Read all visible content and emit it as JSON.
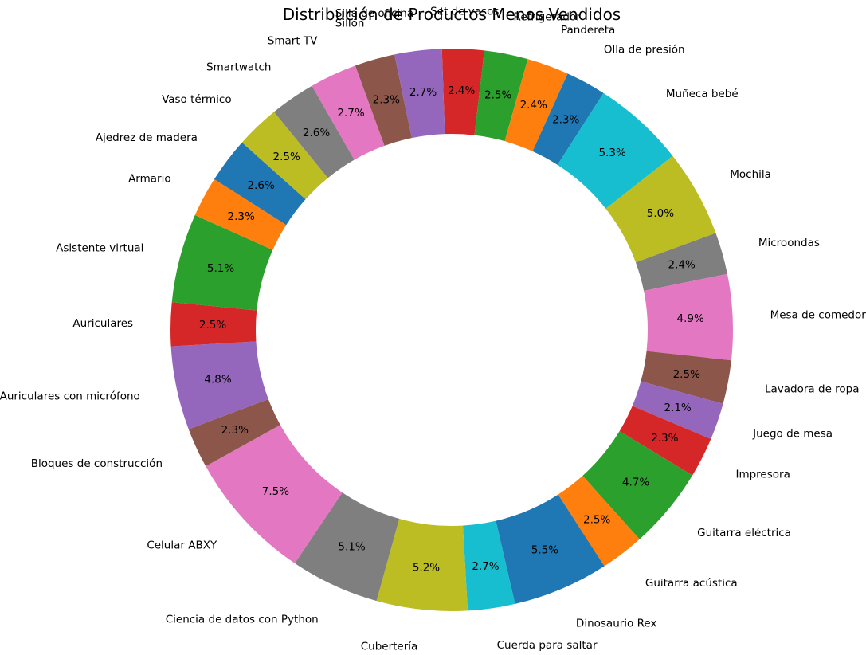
{
  "chart_data": {
    "type": "pie",
    "donut": true,
    "title": "Distribución de Productos Menos Vendidos",
    "start_angle_deg": 92,
    "direction": "clockwise",
    "slices": [
      {
        "label": "Set de vasos",
        "value": 2.4,
        "pct": "2.4%",
        "color": "#d62728"
      },
      {
        "label": "Refrigerador",
        "value": 2.5,
        "pct": "2.5%",
        "color": "#2ca02c"
      },
      {
        "label": "Pandereta",
        "value": 2.4,
        "pct": "2.4%",
        "color": "#ff7f0e"
      },
      {
        "label": "Olla de presión",
        "value": 2.3,
        "pct": "2.3%",
        "color": "#1f77b4"
      },
      {
        "label": "Muñeca bebé",
        "value": 5.3,
        "pct": "5.3%",
        "color": "#17becf"
      },
      {
        "label": "Mochila",
        "value": 5.0,
        "pct": "5.0%",
        "color": "#bcbd22"
      },
      {
        "label": "Microondas",
        "value": 2.4,
        "pct": "2.4%",
        "color": "#7f7f7f"
      },
      {
        "label": "Mesa de comedor",
        "value": 4.9,
        "pct": "4.9%",
        "color": "#e377c2"
      },
      {
        "label": "Lavadora de ropa",
        "value": 2.5,
        "pct": "2.5%",
        "color": "#8c564b"
      },
      {
        "label": "Juego de mesa",
        "value": 2.1,
        "pct": "2.1%",
        "color": "#9467bd"
      },
      {
        "label": "Impresora",
        "value": 2.3,
        "pct": "2.3%",
        "color": "#d62728"
      },
      {
        "label": "Guitarra eléctrica",
        "value": 4.7,
        "pct": "4.7%",
        "color": "#2ca02c"
      },
      {
        "label": "Guitarra acústica",
        "value": 2.5,
        "pct": "2.5%",
        "color": "#ff7f0e"
      },
      {
        "label": "Dinosaurio Rex",
        "value": 5.5,
        "pct": "5.5%",
        "color": "#1f77b4"
      },
      {
        "label": "Cuerda para saltar",
        "value": 2.7,
        "pct": "2.7%",
        "color": "#17becf"
      },
      {
        "label": "Cubertería",
        "value": 5.2,
        "pct": "5.2%",
        "color": "#bcbd22"
      },
      {
        "label": "Ciencia de datos con Python",
        "value": 5.1,
        "pct": "5.1%",
        "color": "#7f7f7f"
      },
      {
        "label": "Celular ABXY",
        "value": 7.5,
        "pct": "7.5%",
        "color": "#e377c2"
      },
      {
        "label": "Bloques de construcción",
        "value": 2.3,
        "pct": "2.3%",
        "color": "#8c564b"
      },
      {
        "label": "Auriculares con micrófono",
        "value": 4.8,
        "pct": "4.8%",
        "color": "#9467bd"
      },
      {
        "label": "Auriculares",
        "value": 2.5,
        "pct": "2.5%",
        "color": "#d62728"
      },
      {
        "label": "Asistente virtual",
        "value": 5.1,
        "pct": "5.1%",
        "color": "#2ca02c"
      },
      {
        "label": "Armario",
        "value": 2.3,
        "pct": "2.3%",
        "color": "#ff7f0e"
      },
      {
        "label": "Ajedrez de madera",
        "value": 2.6,
        "pct": "2.6%",
        "color": "#1f77b4"
      },
      {
        "label": "Vaso térmico",
        "value": 2.5,
        "pct": "2.5%",
        "color": "#bcbd22"
      },
      {
        "label": "Smartwatch",
        "value": 2.6,
        "pct": "2.6%",
        "color": "#7f7f7f"
      },
      {
        "label": "Smart TV",
        "value": 2.7,
        "pct": "2.7%",
        "color": "#e377c2"
      },
      {
        "label": "Sillón",
        "value": 2.3,
        "pct": "2.3%",
        "color": "#8c564b"
      },
      {
        "label": "Silla de oficina",
        "value": 2.7,
        "pct": "2.7%",
        "color": "#9467bd"
      }
    ]
  }
}
